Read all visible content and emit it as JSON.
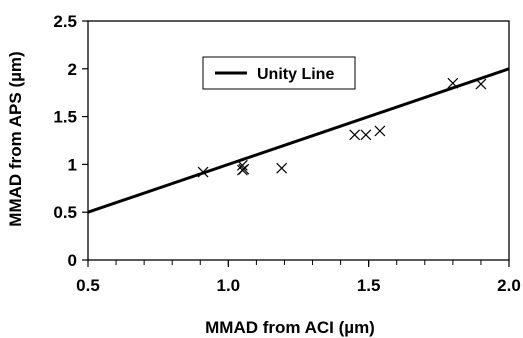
{
  "chart_data": {
    "type": "scatter",
    "xlabel": "MMAD from ACI (µm)",
    "ylabel": "MMAD from APS (µm)",
    "xlim": [
      0.5,
      2.0
    ],
    "ylim": [
      0,
      2.5
    ],
    "x_ticks": [
      "0.5",
      "1.0",
      "1.5",
      "2.0"
    ],
    "y_ticks": [
      "0",
      "0.5",
      "1",
      "1.5",
      "2",
      "2.5"
    ],
    "x_tick_values": [
      0.5,
      1.0,
      1.5,
      2.0
    ],
    "y_tick_values": [
      0,
      0.5,
      1,
      1.5,
      2,
      2.5
    ],
    "x_minor_step": 0.1,
    "grid": false,
    "legend_position": "top-center",
    "marker": "x",
    "series": [
      {
        "kind": "points",
        "x": [
          0.91,
          1.05,
          1.05,
          1.055,
          1.19,
          1.45,
          1.49,
          1.54,
          1.8,
          1.9
        ],
        "y": [
          0.92,
          0.99,
          0.94,
          0.95,
          0.96,
          1.31,
          1.31,
          1.35,
          1.85,
          1.84
        ]
      },
      {
        "kind": "line",
        "name": "Unity Line",
        "x": [
          0.5,
          2.0
        ],
        "y": [
          0.5,
          2.0
        ]
      }
    ]
  }
}
